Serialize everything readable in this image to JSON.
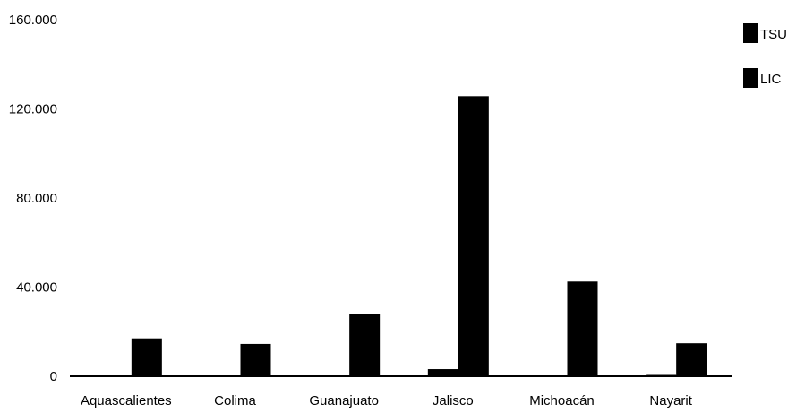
{
  "chart_data": {
    "type": "bar",
    "categories": [
      "Aquascalientes",
      "Colima",
      "Guanajuato",
      "Jalisco",
      "Michoacán",
      "Nayarit"
    ],
    "series": [
      {
        "name": "TSU",
        "values": [
          300,
          200,
          300,
          3200,
          400,
          600
        ]
      },
      {
        "name": "LIC",
        "values": [
          17000,
          14500,
          27800,
          125700,
          42500,
          14800
        ]
      }
    ],
    "ylim": [
      0,
      160000
    ],
    "yticks": [
      0,
      40000,
      80000,
      120000,
      160000
    ],
    "ytick_labels": [
      "0",
      "40.000",
      "80.000",
      "120.000",
      "160.000"
    ],
    "legend_position": "top-right",
    "grid": false,
    "colors": {
      "TSU": "#000000",
      "LIC": "#000000"
    }
  }
}
